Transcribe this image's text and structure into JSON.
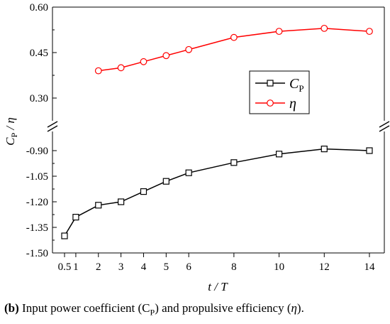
{
  "chart_data": {
    "type": "line",
    "x": [
      0.5,
      1,
      2,
      3,
      4,
      5,
      6,
      8,
      10,
      12,
      14
    ],
    "x_tick_labels": [
      "0.5",
      "1",
      "2",
      "3",
      "4",
      "5",
      "6",
      "8",
      "10",
      "12",
      "14"
    ],
    "xlabel": "t / T",
    "ylabel": "C_P / η",
    "ylabel_parts": {
      "c": "C",
      "sub": "P",
      "rest": " / η"
    },
    "y_broken": true,
    "y_upper_range": [
      0.24,
      0.6
    ],
    "y_lower_range": [
      -1.5,
      -0.84
    ],
    "y_upper_ticks": [
      "0.60",
      "0.45",
      "0.30"
    ],
    "y_lower_ticks": [
      "-0.90",
      "-1.05",
      "-1.20",
      "-1.35",
      "-1.50"
    ],
    "legend_position": "right-middle",
    "series": [
      {
        "name": "C_P",
        "legend_main": "C",
        "legend_sub": "P",
        "color": "#000000",
        "marker": "square",
        "x": [
          0.5,
          1,
          2,
          3,
          4,
          5,
          6,
          8,
          10,
          12,
          14
        ],
        "values": [
          -1.4,
          -1.29,
          -1.22,
          -1.2,
          -1.14,
          -1.08,
          -1.03,
          -0.97,
          -0.92,
          -0.89,
          -0.9
        ]
      },
      {
        "name": "η",
        "legend_main": "η",
        "legend_sub": "",
        "color": "#ff0000",
        "marker": "circle",
        "x": [
          2,
          3,
          4,
          5,
          6,
          8,
          10,
          12,
          14
        ],
        "values": [
          0.39,
          0.4,
          0.42,
          0.44,
          0.46,
          0.5,
          0.52,
          0.53,
          0.52
        ]
      }
    ]
  },
  "caption": {
    "label": "(b)",
    "text_before": " Input power coefficient (C",
    "sub": "P",
    "text_middle": ") and propulsive efficiency (",
    "eta": "η",
    "text_after": ")."
  }
}
